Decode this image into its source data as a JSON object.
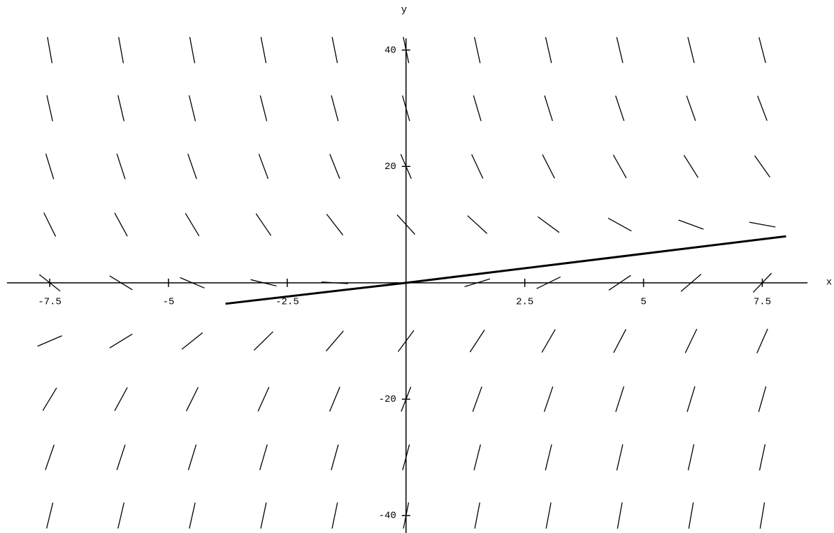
{
  "chart_data": {
    "type": "direction-field",
    "x_label": "x",
    "y_label": "y",
    "xlim": [
      -8.4,
      8.45
    ],
    "ylim": [
      -43,
      42
    ],
    "xticks": [
      -7.5,
      -5,
      -2.5,
      2.5,
      5,
      7.5
    ],
    "yticks": [
      -40,
      -20,
      20,
      40
    ],
    "grid_x": [
      -7.5,
      -6,
      -4.5,
      -3,
      -1.5,
      0,
      1.5,
      3,
      4.5,
      6,
      7.5
    ],
    "grid_y": [
      40,
      30,
      20,
      10,
      0,
      -10,
      -20,
      -30,
      -40
    ],
    "slopes": [
      [
        -46.5,
        -45,
        -43.5,
        -42,
        -40.5,
        -39,
        -37.5,
        -36,
        -34.5,
        -33,
        -31.5
      ],
      [
        -36.5,
        -35,
        -33.5,
        -32,
        -30.5,
        -29,
        -27.5,
        -26,
        -24.5,
        -23,
        -21.5
      ],
      [
        -26.5,
        -25,
        -23.5,
        -22,
        -20.5,
        -19,
        -17.5,
        -16,
        -14.5,
        -13,
        -11.5
      ],
      [
        -16.5,
        -15,
        -13.5,
        -12,
        -10.5,
        -9,
        -7.5,
        -6,
        -4.5,
        -3,
        -1.5
      ],
      [
        -6.5,
        -5,
        -3.5,
        -2,
        -0.5,
        1,
        2.5,
        4,
        5.5,
        7,
        8.5
      ],
      [
        3.5,
        5,
        6.5,
        8,
        9.5,
        11,
        12.5,
        14,
        15.5,
        17,
        18.5
      ],
      [
        13.5,
        15,
        16.5,
        18,
        19.5,
        21,
        22.5,
        24,
        25.5,
        27,
        28.5
      ],
      [
        23.5,
        25,
        26.5,
        28,
        29.5,
        31,
        32.5,
        34,
        35.5,
        37,
        38.5
      ],
      [
        33.5,
        35,
        36.5,
        38,
        39.5,
        41,
        42.5,
        44,
        45.5,
        47,
        48.5
      ]
    ],
    "series": [
      {
        "color": "#000000",
        "x": [
          -3.8,
          0,
          8
        ],
        "values": [
          -3.6,
          0,
          8
        ]
      }
    ]
  }
}
